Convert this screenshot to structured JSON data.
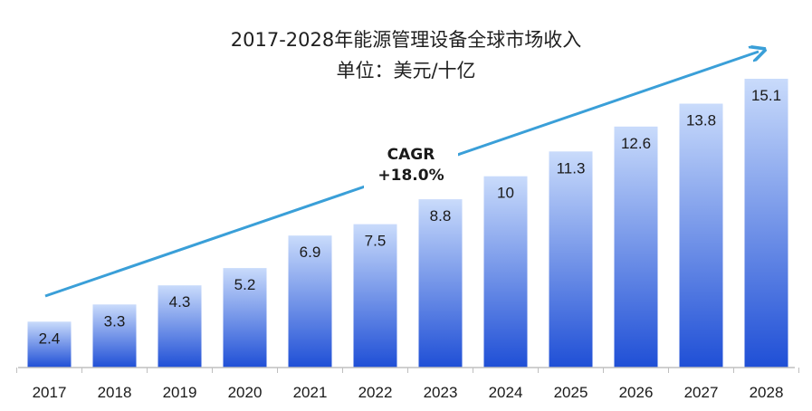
{
  "chart_data": {
    "type": "bar",
    "title": "2017-2028年能源管理设备全球市场收入",
    "subtitle": "单位：美元/十亿",
    "categories": [
      "2017",
      "2018",
      "2019",
      "2020",
      "2021",
      "2022",
      "2023",
      "2024",
      "2025",
      "2026",
      "2027",
      "2028"
    ],
    "values": [
      2.4,
      3.3,
      4.3,
      5.2,
      6.9,
      7.5,
      8.8,
      10,
      11.3,
      12.6,
      13.8,
      15.1
    ],
    "value_labels": [
      "2.4",
      "3.3",
      "4.3",
      "5.2",
      "6.9",
      "7.5",
      "8.8",
      "10",
      "11.3",
      "12.6",
      "13.8",
      "15.1"
    ],
    "ylim": [
      0,
      15.1
    ],
    "xlabel": "",
    "ylabel": "",
    "grid": false,
    "annotation": {
      "line1": "CAGR",
      "line2": "+18.0%"
    },
    "colors": {
      "bar_top": "#c9dbfb",
      "bar_bottom": "#1f4fd6",
      "arrow": "#3a9fd8",
      "axis": "#bfbfbf"
    }
  }
}
